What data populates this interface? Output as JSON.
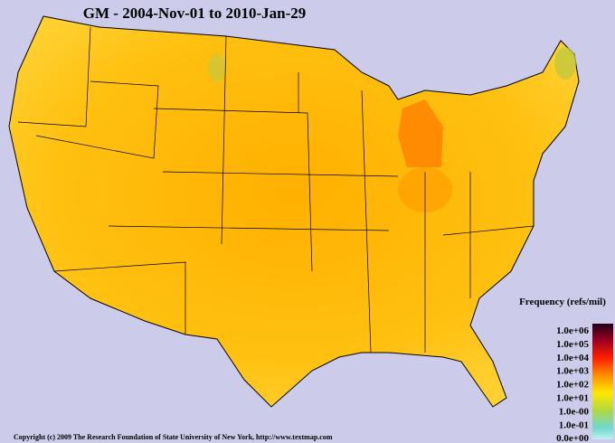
{
  "title": "GM - 2004-Nov-01 to 2010-Jan-29",
  "legend": {
    "title": "Frequency (refs/mil)",
    "labels": [
      "1.0e+06",
      "1.0e+05",
      "1.0e+04",
      "1.0e+03",
      "1.0e+02",
      "1.0e+01",
      "1.0e-00",
      "1.0e-01",
      "0.0e+00"
    ]
  },
  "footer": "Copyright (c) 2009 The Research Foundation of State University of New York, http://www.textmap.com"
}
